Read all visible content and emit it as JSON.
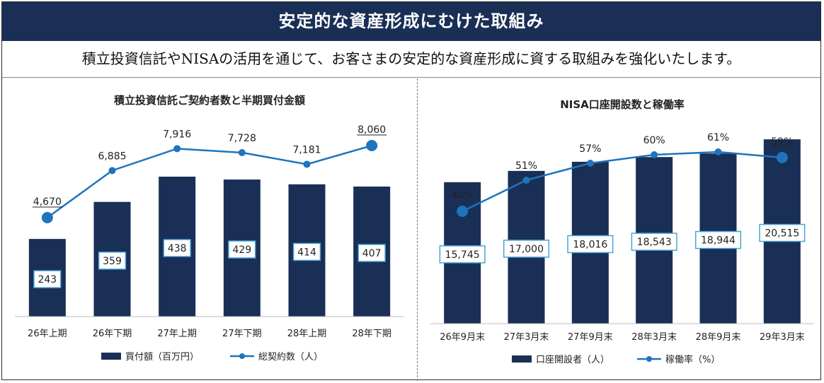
{
  "header": {
    "title": "安定的な資産形成にむけた取組み",
    "subtitle": "積立投資信託やNISAの活用を通じて、お客さまの安定的な資産形成に資する取組みを強化いたします。"
  },
  "colors": {
    "banner": "#1a2f55",
    "bar": "#1a2f55",
    "line": "#1e74bd",
    "label_border": "#4aa3d8"
  },
  "chart_data": [
    {
      "type": "bar",
      "title": "積立投資信託ご契約者数と半期買付金額",
      "categories": [
        "26年上期",
        "26年下期",
        "27年上期",
        "27年下期",
        "28年上期",
        "28年下期"
      ],
      "series": [
        {
          "name": "買付額（百万円）",
          "type": "bar",
          "values": [
            243,
            359,
            438,
            429,
            414,
            407
          ],
          "labels": [
            "243",
            "359",
            "438",
            "429",
            "414",
            "407"
          ]
        },
        {
          "name": "総契約数（人）",
          "type": "line",
          "values": [
            4670,
            6885,
            7916,
            7728,
            7181,
            8060
          ],
          "labels": [
            "4,670",
            "6,885",
            "7,916",
            "7,728",
            "7,181",
            "8,060"
          ]
        }
      ],
      "legend_position": "bottom",
      "grid": false
    },
    {
      "type": "bar",
      "title": "NISA口座開設数と稼働率",
      "categories": [
        "26年9月末",
        "27年3月末",
        "27年9月末",
        "28年3月末",
        "28年9月末",
        "29年3月末"
      ],
      "series": [
        {
          "name": "口座開設者（人）",
          "type": "bar",
          "values": [
            15745,
            17000,
            18016,
            18543,
            18944,
            20515
          ],
          "labels": [
            "15,745",
            "17,000",
            "18,016",
            "18,543",
            "18,944",
            "20,515"
          ]
        },
        {
          "name": "稼働率（%）",
          "type": "line",
          "values": [
            40,
            51,
            57,
            60,
            61,
            59
          ],
          "labels": [
            "40%",
            "51%",
            "57%",
            "60%",
            "61%",
            "59%"
          ]
        }
      ],
      "legend_position": "bottom",
      "grid": false
    }
  ]
}
